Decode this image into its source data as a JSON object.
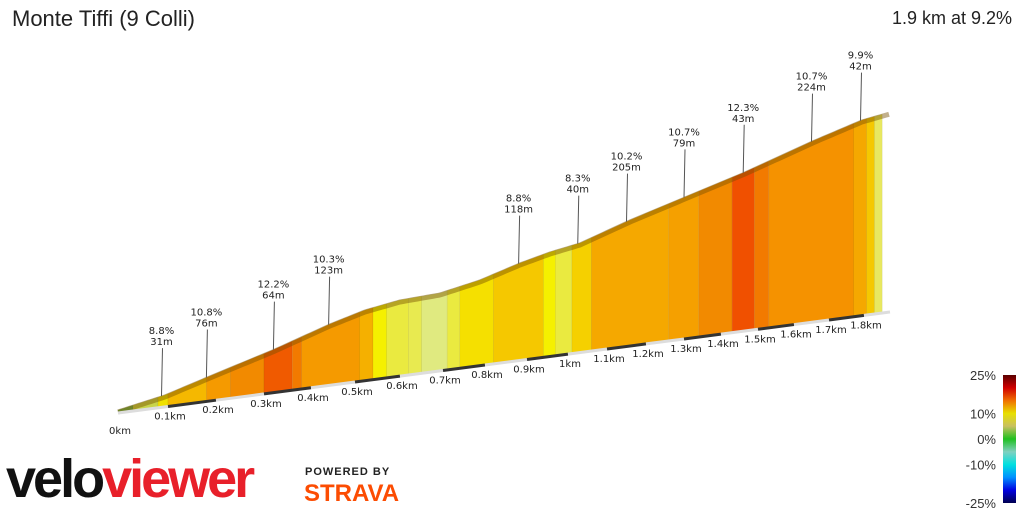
{
  "header": {
    "title": "Monte Tiffi (9 Colli)",
    "summary": "1.9 km at 9.2%"
  },
  "chart_data": {
    "type": "area",
    "title": "Monte Tiffi (9 Colli)",
    "x_unit": "km",
    "x_ticks": [
      "0km",
      "0.1km",
      "0.2km",
      "0.3km",
      "0.4km",
      "0.5km",
      "0.6km",
      "0.7km",
      "0.8km",
      "0.9km",
      "1km",
      "1.1km",
      "1.2km",
      "1.3km",
      "1.4km",
      "1.5km",
      "1.6km",
      "1.7km",
      "1.8km"
    ],
    "segments": [
      {
        "from": 0,
        "to": 0.03,
        "color": "#6ab04c"
      },
      {
        "from": 0.03,
        "to": 0.08,
        "color": "#c8d44a"
      },
      {
        "from": 0.08,
        "to": 0.1,
        "color": "#f0e000"
      },
      {
        "from": 0.1,
        "to": 0.18,
        "color": "#f5b800"
      },
      {
        "from": 0.18,
        "to": 0.23,
        "color": "#f59a00"
      },
      {
        "from": 0.23,
        "to": 0.3,
        "color": "#f28a00"
      },
      {
        "from": 0.3,
        "to": 0.36,
        "color": "#f05a00"
      },
      {
        "from": 0.36,
        "to": 0.38,
        "color": "#f27a00"
      },
      {
        "from": 0.38,
        "to": 0.51,
        "color": "#f59a00"
      },
      {
        "from": 0.51,
        "to": 0.54,
        "color": "#f5b000"
      },
      {
        "from": 0.54,
        "to": 0.57,
        "color": "#f5f000"
      },
      {
        "from": 0.57,
        "to": 0.62,
        "color": "#eaea40"
      },
      {
        "from": 0.62,
        "to": 0.65,
        "color": "#e8ea50"
      },
      {
        "from": 0.65,
        "to": 0.71,
        "color": "#e0ea80"
      },
      {
        "from": 0.71,
        "to": 0.74,
        "color": "#eaea40"
      },
      {
        "from": 0.74,
        "to": 0.82,
        "color": "#f5e000"
      },
      {
        "from": 0.82,
        "to": 0.94,
        "color": "#f5c800"
      },
      {
        "from": 0.94,
        "to": 0.97,
        "color": "#f5f000"
      },
      {
        "from": 0.97,
        "to": 1.01,
        "color": "#eaea40"
      },
      {
        "from": 1.01,
        "to": 1.06,
        "color": "#f5d000"
      },
      {
        "from": 1.06,
        "to": 1.26,
        "color": "#f5a800"
      },
      {
        "from": 1.26,
        "to": 1.34,
        "color": "#f5a000"
      },
      {
        "from": 1.34,
        "to": 1.43,
        "color": "#f28a00"
      },
      {
        "from": 1.43,
        "to": 1.49,
        "color": "#f05000"
      },
      {
        "from": 1.49,
        "to": 1.53,
        "color": "#f27a00"
      },
      {
        "from": 1.53,
        "to": 1.77,
        "color": "#f59200"
      },
      {
        "from": 1.77,
        "to": 1.81,
        "color": "#f5a800"
      },
      {
        "from": 1.81,
        "to": 1.84,
        "color": "#f5c800"
      },
      {
        "from": 1.84,
        "to": 1.87,
        "color": "#e8e860"
      }
    ],
    "annotations": [
      {
        "km": 0.087,
        "grade": "8.8%",
        "length": "31m"
      },
      {
        "km": 0.18,
        "grade": "10.8%",
        "length": "76m"
      },
      {
        "km": 0.32,
        "grade": "12.2%",
        "length": "64m"
      },
      {
        "km": 0.44,
        "grade": "10.3%",
        "length": "123m"
      },
      {
        "km": 0.88,
        "grade": "8.8%",
        "length": "118m"
      },
      {
        "km": 1.025,
        "grade": "8.3%",
        "length": "40m"
      },
      {
        "km": 1.15,
        "grade": "10.2%",
        "length": "205m"
      },
      {
        "km": 1.3,
        "grade": "10.7%",
        "length": "79m"
      },
      {
        "km": 1.46,
        "grade": "12.3%",
        "length": "43m"
      },
      {
        "km": 1.65,
        "grade": "10.7%",
        "length": "224m"
      },
      {
        "km": 1.79,
        "grade": "9.9%",
        "length": "42m"
      }
    ],
    "color_scale": {
      "labels": [
        "25%",
        "10%",
        "0%",
        "-10%",
        "-25%"
      ],
      "values": [
        25,
        10,
        0,
        -10,
        -25
      ],
      "colors": [
        "#5a0000",
        "#d00000",
        "#f07000",
        "#e8e000",
        "#c8c060",
        "#20c020",
        "#80d0c0",
        "#00e0e0",
        "#0090ff",
        "#0000e0",
        "#000050"
      ]
    }
  },
  "branding": {
    "logo_a": "velo",
    "logo_b": "viewer",
    "powered": "POWERED BY",
    "strava": "STRAVA"
  }
}
